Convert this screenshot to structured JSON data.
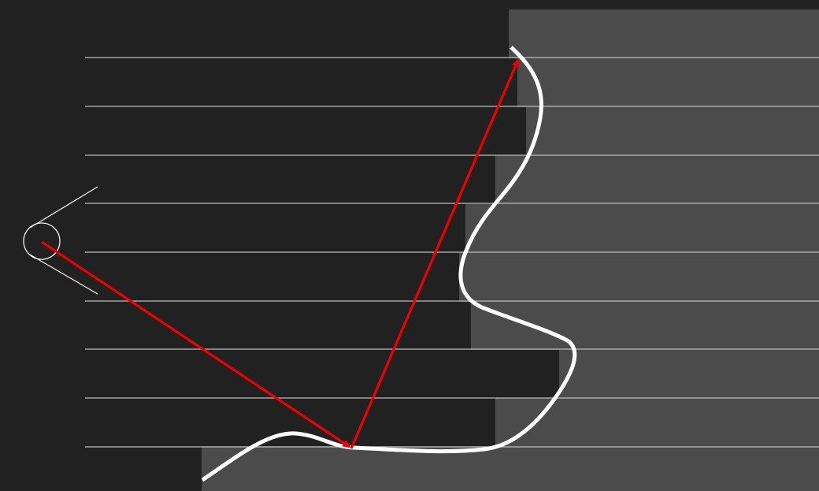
{
  "colors": {
    "background": "#212121",
    "occupied_region": "#4b4b4b",
    "scan_lines": "#bdbdbd",
    "boundary_curve": "#ffffff",
    "ray": "#ee0000",
    "camera": "#f0f0f0"
  },
  "icons": {
    "camera": "camera-eye-icon"
  }
}
